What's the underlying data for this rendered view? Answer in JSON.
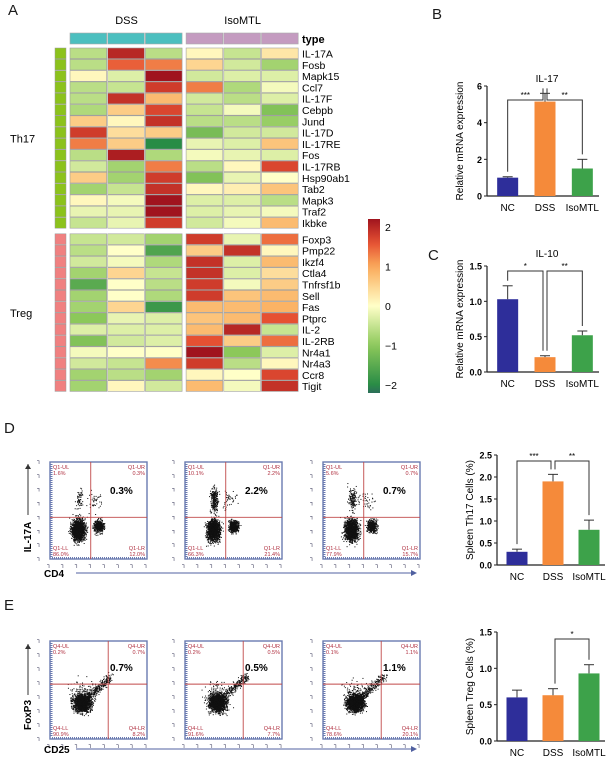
{
  "panels": {
    "A": "A",
    "B": "B",
    "C": "C",
    "D": "D",
    "E": "E"
  },
  "chart_data": [
    {
      "id": "A",
      "type": "heatmap",
      "title": "",
      "column_groups": [
        "DSS",
        "IsoMTL"
      ],
      "group_colors": {
        "DSS": "#4cbfbf",
        "IsoMTL": "#c49bc0"
      },
      "annotation_label": "type",
      "row_groups": [
        {
          "name": "Th17",
          "color": "#8cc21c",
          "rows": [
            "IL-17A",
            "Fosb",
            "Mapk15",
            "Ccl7",
            "IL-17F",
            "Cebpb",
            "Jund",
            "IL-17D",
            "IL-17RE",
            "Fos",
            "IL-17RB",
            "Hsp90ab1",
            "Tab2",
            "Mapk3",
            "Traf2",
            "Ikbke"
          ],
          "values": [
            [
              -0.6,
              2.0,
              -0.6,
              0.1,
              -0.5,
              0.3
            ],
            [
              -0.6,
              1.5,
              1.3,
              0.5,
              -0.4,
              -0.8
            ],
            [
              0.1,
              -0.3,
              2.2,
              -0.4,
              -0.3,
              -0.3
            ],
            [
              -0.6,
              -0.5,
              1.8,
              1.3,
              -0.7,
              -0.1
            ],
            [
              -0.6,
              1.9,
              0.8,
              -0.4,
              -0.6,
              -0.3
            ],
            [
              -0.7,
              0.6,
              1.7,
              -0.5,
              -0.1,
              -1.1
            ],
            [
              0.6,
              0.1,
              1.9,
              -0.6,
              -0.6,
              -0.9
            ],
            [
              1.8,
              0.4,
              0.6,
              -1.2,
              -0.4,
              -0.4
            ],
            [
              1.3,
              0.6,
              -2.0,
              -0.2,
              -0.3,
              0.7
            ],
            [
              -0.6,
              2.1,
              -0.7,
              -0.1,
              -0.2,
              -0.3
            ],
            [
              -0.4,
              -0.8,
              1.3,
              -0.6,
              0.1,
              1.7
            ],
            [
              0.6,
              -0.8,
              1.8,
              -1.1,
              -0.2,
              0.0
            ],
            [
              -0.8,
              -0.5,
              1.9,
              0.1,
              0.2,
              0.7
            ],
            [
              0.1,
              -0.1,
              2.2,
              -0.3,
              -0.3,
              -0.6
            ],
            [
              -0.2,
              -0.2,
              2.2,
              -0.3,
              -0.2,
              -0.1
            ],
            [
              -0.5,
              -0.2,
              1.8,
              -0.4,
              -0.1,
              0.8
            ]
          ]
        },
        {
          "name": "Treg",
          "color": "#f08080",
          "rows": [
            "Foxp3",
            "Pmp22",
            "Ikzf4",
            "Ctla4",
            "Tnfrsf1b",
            "Sell",
            "Fas",
            "Ptprc",
            "IL-2",
            "IL-2RB",
            "Nr4a1",
            "Nr4a3",
            "Ccr8",
            "Tigit"
          ],
          "values": [
            [
              -0.5,
              -0.4,
              -0.8,
              1.8,
              -0.2,
              1.4
            ],
            [
              -0.6,
              0.0,
              -1.6,
              0.6,
              1.9,
              0.1
            ],
            [
              -0.4,
              -0.1,
              -0.7,
              1.9,
              -0.3,
              0.8
            ],
            [
              -0.8,
              0.5,
              -0.5,
              1.9,
              -0.3,
              0.4
            ],
            [
              -1.5,
              0.0,
              -0.6,
              1.8,
              -0.1,
              0.6
            ],
            [
              -0.8,
              0.0,
              -0.7,
              1.8,
              0.7,
              0.8
            ],
            [
              -0.8,
              0.5,
              -1.8,
              0.8,
              0.8,
              0.9
            ],
            [
              -1.0,
              -0.2,
              -0.3,
              0.7,
              0.8,
              1.6
            ],
            [
              -0.3,
              -0.3,
              -0.3,
              0.8,
              2.0,
              -0.5
            ],
            [
              -1.1,
              -0.4,
              -0.3,
              1.6,
              0.6,
              1.4
            ],
            [
              -0.1,
              0.0,
              0.0,
              2.2,
              -1.0,
              -0.3
            ],
            [
              -0.4,
              -0.5,
              1.2,
              1.8,
              -0.6,
              0.1
            ],
            [
              -0.8,
              -0.6,
              -0.8,
              0.1,
              0.0,
              1.7
            ],
            [
              -0.8,
              0.1,
              -0.4,
              0.8,
              -0.1,
              1.9
            ]
          ]
        }
      ],
      "colorbar": {
        "ticks": [
          2,
          1,
          0,
          -1,
          -2
        ],
        "tick_labels": [
          "2",
          "1",
          "0",
          "−1",
          "−2"
        ],
        "range": [
          -2.2,
          2.2
        ]
      }
    },
    {
      "id": "B",
      "type": "bar",
      "title": "IL-17",
      "ylabel": "Relative mRNA expression",
      "xlabel": "",
      "categories": [
        "NC",
        "DSS",
        "IsoMTL"
      ],
      "values": [
        1.0,
        5.15,
        1.5
      ],
      "errors": [
        0.05,
        0.45,
        0.5
      ],
      "colors": [
        "#2e2e9a",
        "#f58a3a",
        "#3da24a"
      ],
      "ylim": [
        0,
        6
      ],
      "yticks": [
        0,
        2,
        4,
        6
      ],
      "ytick_labels": [
        "0",
        "2",
        "4",
        "6"
      ],
      "significance": [
        {
          "from": "NC",
          "to": "DSS",
          "label": "***"
        },
        {
          "from": "DSS",
          "to": "IsoMTL",
          "label": "**"
        }
      ]
    },
    {
      "id": "C",
      "type": "bar",
      "title": "IL-10",
      "ylabel": "Relative mRNA expression",
      "xlabel": "",
      "categories": [
        "NC",
        "DSS",
        "IsoMTL"
      ],
      "values": [
        1.03,
        0.21,
        0.52
      ],
      "errors": [
        0.19,
        0.02,
        0.06
      ],
      "colors": [
        "#2e2e9a",
        "#f58a3a",
        "#3da24a"
      ],
      "ylim": [
        0,
        1.5
      ],
      "yticks": [
        0,
        0.5,
        1.0,
        1.5
      ],
      "ytick_labels": [
        "0.0",
        "0.5",
        "1.0",
        "1.5"
      ],
      "significance": [
        {
          "from": "NC",
          "to": "DSS",
          "label": "*"
        },
        {
          "from": "DSS",
          "to": "IsoMTL",
          "label": "**"
        }
      ]
    },
    {
      "id": "D-bar",
      "type": "bar",
      "title": "",
      "ylabel": "Spleen Th17 Cells  (%)",
      "xlabel": "",
      "categories": [
        "NC",
        "DSS",
        "IsoMTL"
      ],
      "values": [
        0.3,
        1.9,
        0.8
      ],
      "errors": [
        0.06,
        0.16,
        0.22
      ],
      "colors": [
        "#2e2e9a",
        "#f58a3a",
        "#3da24a"
      ],
      "ylim": [
        0,
        2.5
      ],
      "yticks": [
        0,
        0.5,
        1.0,
        1.5,
        2.0,
        2.5
      ],
      "ytick_labels": [
        "0.0",
        "0.5",
        "1.0",
        "1.5",
        "2.0",
        "2.5"
      ],
      "significance": [
        {
          "from": "NC",
          "to": "DSS",
          "label": "***"
        },
        {
          "from": "DSS",
          "to": "IsoMTL",
          "label": "**"
        }
      ]
    },
    {
      "id": "E-bar",
      "type": "bar",
      "title": "",
      "ylabel": "Spleen Treg Cells  (%)",
      "xlabel": "",
      "categories": [
        "NC",
        "DSS",
        "IsoMTL"
      ],
      "values": [
        0.6,
        0.63,
        0.93
      ],
      "errors": [
        0.1,
        0.09,
        0.12
      ],
      "colors": [
        "#2e2e9a",
        "#f58a3a",
        "#3da24a"
      ],
      "ylim": [
        0,
        1.5
      ],
      "yticks": [
        0,
        0.5,
        1.0,
        1.5
      ],
      "ytick_labels": [
        "0.0",
        "0.5",
        "1.0",
        "1.5"
      ],
      "significance": [
        {
          "from": "DSS",
          "to": "IsoMTL",
          "label": "*"
        }
      ]
    },
    {
      "id": "D-flow",
      "type": "scatter",
      "xlabel": "CD4",
      "ylabel": "IL-17A",
      "plots": [
        {
          "highlight": "0.3%",
          "UL": [
            "Q1-UL",
            "1.6%"
          ],
          "UR": [
            "Q1-UR",
            "0.3%"
          ],
          "LL": [
            "Q1-LL",
            "86.0%"
          ],
          "LR": [
            "Q1-LR",
            "12.0%"
          ]
        },
        {
          "highlight": "2.2%",
          "UL": [
            "Q1-UL",
            "10.1%"
          ],
          "UR": [
            "Q1-UR",
            "2.2%"
          ],
          "LL": [
            "Q1-LL",
            "66.3%"
          ],
          "LR": [
            "Q1-LR",
            "21.4%"
          ]
        },
        {
          "highlight": "0.7%",
          "UL": [
            "Q1-UL",
            "5.6%"
          ],
          "UR": [
            "Q1-UR",
            "0.7%"
          ],
          "LL": [
            "Q1-LL",
            "77.9%"
          ],
          "LR": [
            "Q1-LR",
            "15.7%"
          ]
        }
      ]
    },
    {
      "id": "E-flow",
      "type": "scatter",
      "xlabel": "CD25",
      "ylabel": "FoxP3",
      "plots": [
        {
          "highlight": "0.7%",
          "UL": [
            "Q4-UL",
            "0.2%"
          ],
          "UR": [
            "Q4-UR",
            "0.7%"
          ],
          "LL": [
            "Q4-LL",
            "90.9%"
          ],
          "LR": [
            "Q4-LR",
            "8.2%"
          ]
        },
        {
          "highlight": "0.5%",
          "UL": [
            "Q4-UL",
            "0.2%"
          ],
          "UR": [
            "Q4-UR",
            "0.5%"
          ],
          "LL": [
            "Q4-LL",
            "91.6%"
          ],
          "LR": [
            "Q4-LR",
            "7.7%"
          ]
        },
        {
          "highlight": "1.1%",
          "UL": [
            "Q4-UL",
            "0.1%"
          ],
          "UR": [
            "Q4-UR",
            "1.1%"
          ],
          "LL": [
            "Q4-LL",
            "78.6%"
          ],
          "LR": [
            "Q4-LR",
            "20.1%"
          ]
        }
      ]
    }
  ]
}
